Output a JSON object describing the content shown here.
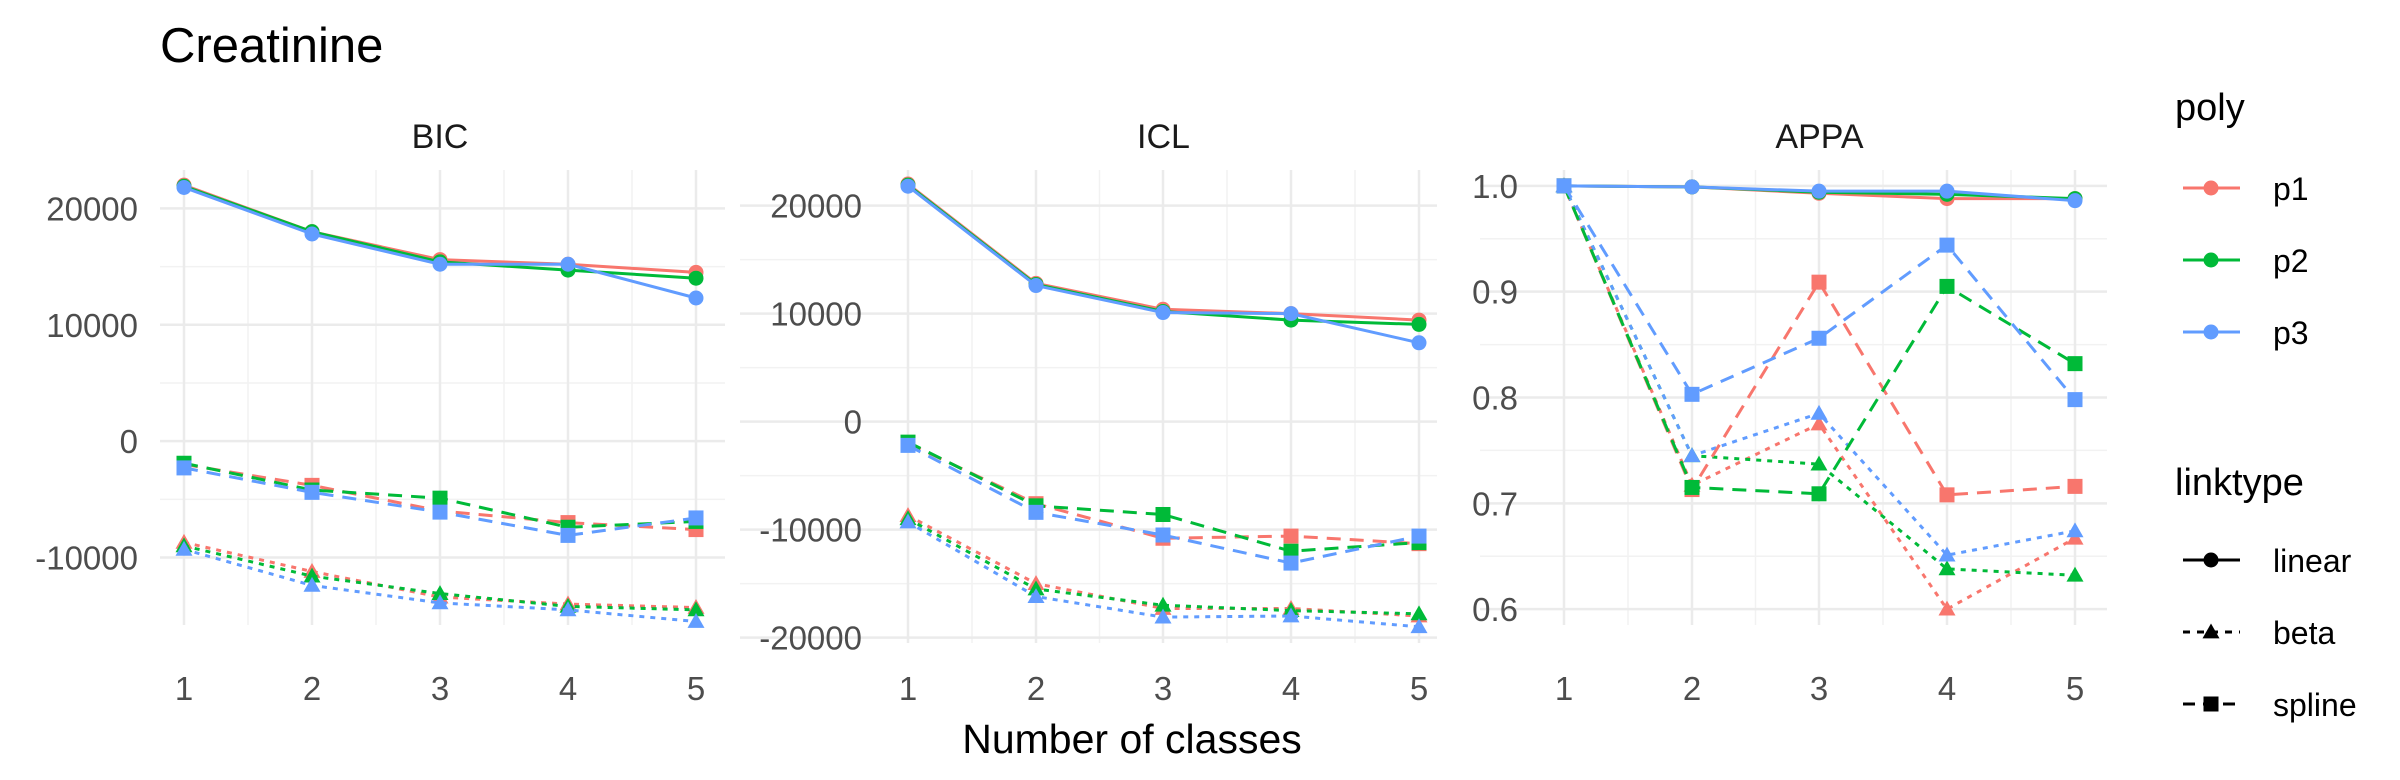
{
  "chart_data": {
    "type": "line",
    "title": "Creatinine",
    "xlabel": "Number of classes",
    "x": [
      1,
      2,
      3,
      4,
      5
    ],
    "colors": {
      "p1": "#F8766D",
      "p2": "#00BA38",
      "p3": "#619CFF"
    },
    "grid": true,
    "legend_placement": "right",
    "legend": {
      "poly": {
        "title": "poly",
        "entries": [
          "p1",
          "p2",
          "p3"
        ]
      },
      "linktype": {
        "title": "linktype",
        "entries": [
          "linear",
          "beta",
          "spline"
        ]
      }
    },
    "panels": [
      {
        "name": "BIC",
        "ylim": [
          -15800,
          23300
        ],
        "yticks": [
          20000,
          10000,
          0,
          -10000
        ],
        "ytick_labels": [
          "20000",
          "10000",
          "0",
          "-10000"
        ],
        "series": [
          {
            "poly": "p1",
            "linktype": "linear",
            "values": [
              22000,
              18000,
              15600,
              15200,
              14500
            ]
          },
          {
            "poly": "p2",
            "linktype": "linear",
            "values": [
              21900,
              18000,
              15400,
              14700,
              14000
            ]
          },
          {
            "poly": "p3",
            "linktype": "linear",
            "values": [
              21800,
              17800,
              15200,
              15200,
              12300
            ]
          },
          {
            "poly": "p1",
            "linktype": "beta",
            "values": [
              -8700,
              -11200,
              -13400,
              -14000,
              -14300
            ]
          },
          {
            "poly": "p2",
            "linktype": "beta",
            "values": [
              -9000,
              -11600,
              -13100,
              -14200,
              -14500
            ]
          },
          {
            "poly": "p3",
            "linktype": "beta",
            "values": [
              -9300,
              -12400,
              -13900,
              -14500,
              -15500
            ]
          },
          {
            "poly": "p1",
            "linktype": "spline",
            "values": [
              -2000,
              -3800,
              -6000,
              -7000,
              -7600
            ]
          },
          {
            "poly": "p2",
            "linktype": "spline",
            "values": [
              -1900,
              -4200,
              -4900,
              -7400,
              -6900
            ]
          },
          {
            "poly": "p3",
            "linktype": "spline",
            "values": [
              -2300,
              -4400,
              -6100,
              -8100,
              -6600
            ]
          }
        ]
      },
      {
        "name": "ICL",
        "ylim": [
          -20500,
          23300
        ],
        "yticks": [
          20000,
          10000,
          0,
          -10000,
          -20000
        ],
        "ytick_labels": [
          "20000",
          "10000",
          "0",
          "-10000",
          "-20000"
        ],
        "series": [
          {
            "poly": "p1",
            "linktype": "linear",
            "values": [
              22000,
              12800,
              10400,
              10000,
              9400
            ]
          },
          {
            "poly": "p2",
            "linktype": "linear",
            "values": [
              21900,
              12700,
              10200,
              9400,
              9000
            ]
          },
          {
            "poly": "p3",
            "linktype": "linear",
            "values": [
              21800,
              12600,
              10100,
              10000,
              7300
            ]
          },
          {
            "poly": "p1",
            "linktype": "beta",
            "values": [
              -8700,
              -15000,
              -17300,
              -17300,
              -18000
            ]
          },
          {
            "poly": "p2",
            "linktype": "beta",
            "values": [
              -9000,
              -15500,
              -17000,
              -17500,
              -17800
            ]
          },
          {
            "poly": "p3",
            "linktype": "beta",
            "values": [
              -9300,
              -16200,
              -18100,
              -18000,
              -19000
            ]
          },
          {
            "poly": "p1",
            "linktype": "spline",
            "values": [
              -2000,
              -7600,
              -10800,
              -10600,
              -11300
            ]
          },
          {
            "poly": "p2",
            "linktype": "spline",
            "values": [
              -1900,
              -7800,
              -8600,
              -12000,
              -11200
            ]
          },
          {
            "poly": "p3",
            "linktype": "spline",
            "values": [
              -2200,
              -8400,
              -10500,
              -13100,
              -10600
            ]
          }
        ]
      },
      {
        "name": "APPA",
        "ylim": [
          0.585,
          1.015
        ],
        "yticks": [
          1.0,
          0.9,
          0.8,
          0.7,
          0.6
        ],
        "ytick_labels": [
          "1.0",
          "0.9",
          "0.8",
          "0.7",
          "0.6"
        ],
        "series": [
          {
            "poly": "p1",
            "linktype": "linear",
            "values": [
              1.0,
              0.999,
              0.993,
              0.988,
              0.988
            ]
          },
          {
            "poly": "p2",
            "linktype": "linear",
            "values": [
              1.0,
              0.999,
              0.994,
              0.992,
              0.988
            ]
          },
          {
            "poly": "p3",
            "linktype": "linear",
            "values": [
              1.0,
              0.999,
              0.995,
              0.995,
              0.986
            ]
          },
          {
            "poly": "p1",
            "linktype": "beta",
            "values": [
              1.0,
              0.717,
              0.775,
              0.6,
              0.667
            ]
          },
          {
            "poly": "p2",
            "linktype": "beta",
            "values": [
              1.0,
              0.745,
              0.737,
              0.638,
              0.632
            ]
          },
          {
            "poly": "p3",
            "linktype": "beta",
            "values": [
              1.0,
              0.745,
              0.785,
              0.651,
              0.674
            ]
          },
          {
            "poly": "p1",
            "linktype": "spline",
            "values": [
              1.0,
              0.713,
              0.909,
              0.708,
              0.716
            ]
          },
          {
            "poly": "p2",
            "linktype": "spline",
            "values": [
              1.0,
              0.715,
              0.709,
              0.905,
              0.832
            ]
          },
          {
            "poly": "p3",
            "linktype": "spline",
            "values": [
              1.0,
              0.803,
              0.856,
              0.944,
              0.798
            ]
          }
        ]
      }
    ]
  }
}
